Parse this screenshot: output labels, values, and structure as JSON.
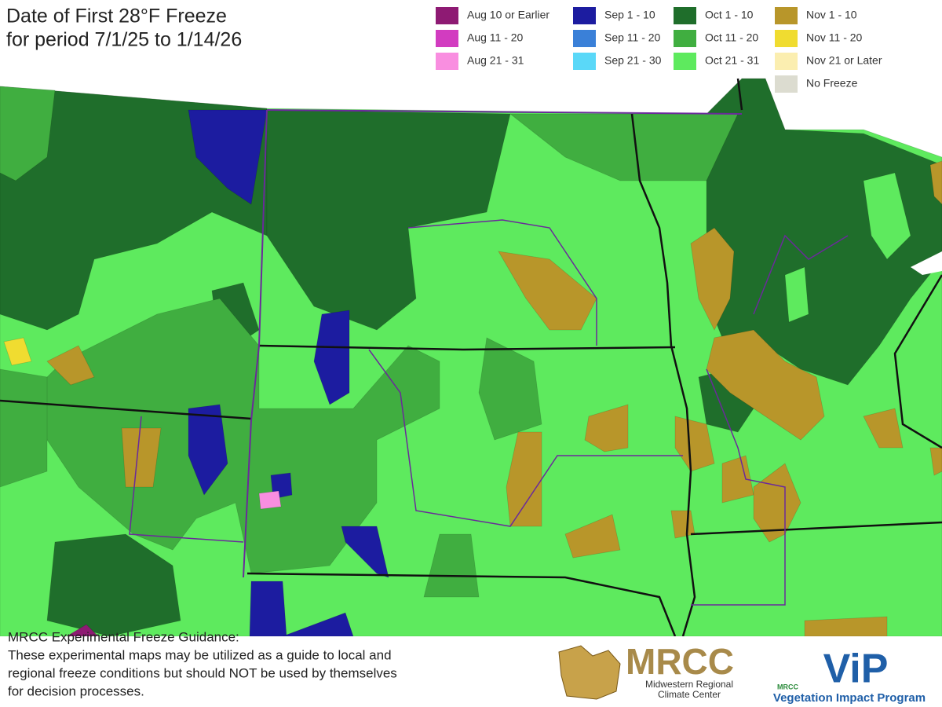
{
  "header": {
    "title": [
      "Date of First 28°F Freeze",
      "for period 7/1/25 to 1/14/26"
    ]
  },
  "legend": [
    [
      {
        "label": "Aug 10 or Earlier",
        "color": "#8e1a73"
      },
      {
        "label": "Aug 11 - 20",
        "color": "#d23cc0"
      },
      {
        "label": "Aug 21 - 31",
        "color": "#f98ee0"
      }
    ],
    [
      {
        "label": "Sep 1 - 10",
        "color": "#1c1ca0"
      },
      {
        "label": "Sep 11 - 20",
        "color": "#3a80d8"
      },
      {
        "label": "Sep 21 - 30",
        "color": "#5ad8f8"
      }
    ],
    [
      {
        "label": "Oct 1 - 10",
        "color": "#1f6e2b"
      },
      {
        "label": "Oct 11 - 20",
        "color": "#40ae40"
      },
      {
        "label": "Oct 21 - 31",
        "color": "#5eea5e"
      }
    ],
    [
      {
        "label": "Nov 1 - 10",
        "color": "#b8962a"
      },
      {
        "label": "Nov 11 - 20",
        "color": "#f0dc30"
      },
      {
        "label": "Nov 21 or Later",
        "color": "#fbeeb0"
      },
      {
        "label": "No Freeze",
        "color": "#dcdcd0"
      }
    ]
  ],
  "disclaimer": [
    "MRCC Experimental Freeze Guidance:",
    "These experimental maps may be utilized as a guide to local and",
    "regional freeze conditions but should NOT be used by themselves",
    "for decision processes."
  ],
  "logos": {
    "mrcc": "MRCC",
    "mrcc_sub": [
      "Midwestern Regional",
      "Climate Center"
    ],
    "vip_tag": "MRCC",
    "vip": "ViP",
    "vip_sub": "Vegetation Impact Program"
  }
}
